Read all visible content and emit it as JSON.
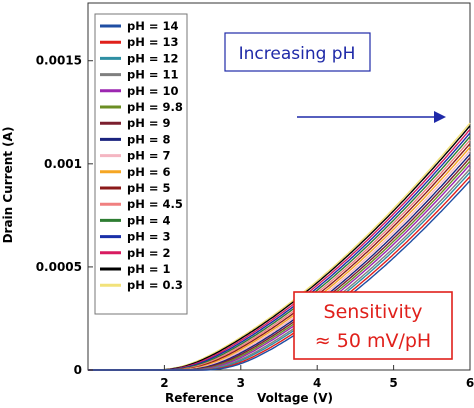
{
  "chart_data": {
    "type": "line",
    "xlabel_left": "Reference",
    "xlabel_right": "Voltage (V)",
    "ylabel": "Drain Current (A)",
    "xlim": [
      1,
      6
    ],
    "ylim": [
      0,
      0.00178
    ],
    "x_ticks": [
      2,
      3,
      4,
      5,
      6
    ],
    "x_tick_labels": [
      "2",
      "3",
      "4",
      "5",
      "6"
    ],
    "y_ticks": [
      0,
      0.0005,
      0.001,
      0.0015
    ],
    "y_tick_labels": [
      "0",
      "0.0005",
      "0.001",
      "0.0015"
    ],
    "grid": false,
    "legend_position": "top-left",
    "series": [
      {
        "name": "pH = 14",
        "color": "#1f4ea3",
        "shift": 0.66
      },
      {
        "name": "pH = 13",
        "color": "#e0201b",
        "shift": 0.61
      },
      {
        "name": "pH = 12",
        "color": "#2e8fa3",
        "shift": 0.56
      },
      {
        "name": "pH = 11",
        "color": "#7f7f7f",
        "shift": 0.52
      },
      {
        "name": "pH = 10",
        "color": "#9c27b0",
        "shift": 0.47
      },
      {
        "name": "pH = 9.8",
        "color": "#6b8e23",
        "shift": 0.43
      },
      {
        "name": "pH = 9",
        "color": "#7b1f2e",
        "shift": 0.39
      },
      {
        "name": "pH = 8",
        "color": "#1a237e",
        "shift": 0.35
      },
      {
        "name": "pH = 7",
        "color": "#f4b6c2",
        "shift": 0.31
      },
      {
        "name": "pH = 6",
        "color": "#f5a623",
        "shift": 0.27
      },
      {
        "name": "pH = 5",
        "color": "#8b1a1a",
        "shift": 0.23
      },
      {
        "name": "pH = 4.5",
        "color": "#f08080",
        "shift": 0.19
      },
      {
        "name": "pH = 4",
        "color": "#2e7d32",
        "shift": 0.15
      },
      {
        "name": "pH = 3",
        "color": "#1a2fa8",
        "shift": 0.11
      },
      {
        "name": "pH = 2",
        "color": "#d81b60",
        "shift": 0.07
      },
      {
        "name": "pH = 1",
        "color": "#000000",
        "shift": 0.03
      },
      {
        "name": "pH = 0.3",
        "color": "#f2e27a",
        "shift": 0.0
      }
    ],
    "curve_model": {
      "description": "I(V) = 0.00011 * (V - 1.85 - shift)^2 / (1 + 0.16*(V - 1.85 - shift)) approx transfer curves",
      "v_threshold": 1.85
    },
    "annotations": [
      {
        "text": "Increasing pH",
        "color": "#1f2aa8"
      },
      {
        "text": "Sensitivity",
        "color": "#e0201b"
      },
      {
        "text": "≈ 50 mV/pH",
        "color": "#e0201b"
      }
    ]
  }
}
